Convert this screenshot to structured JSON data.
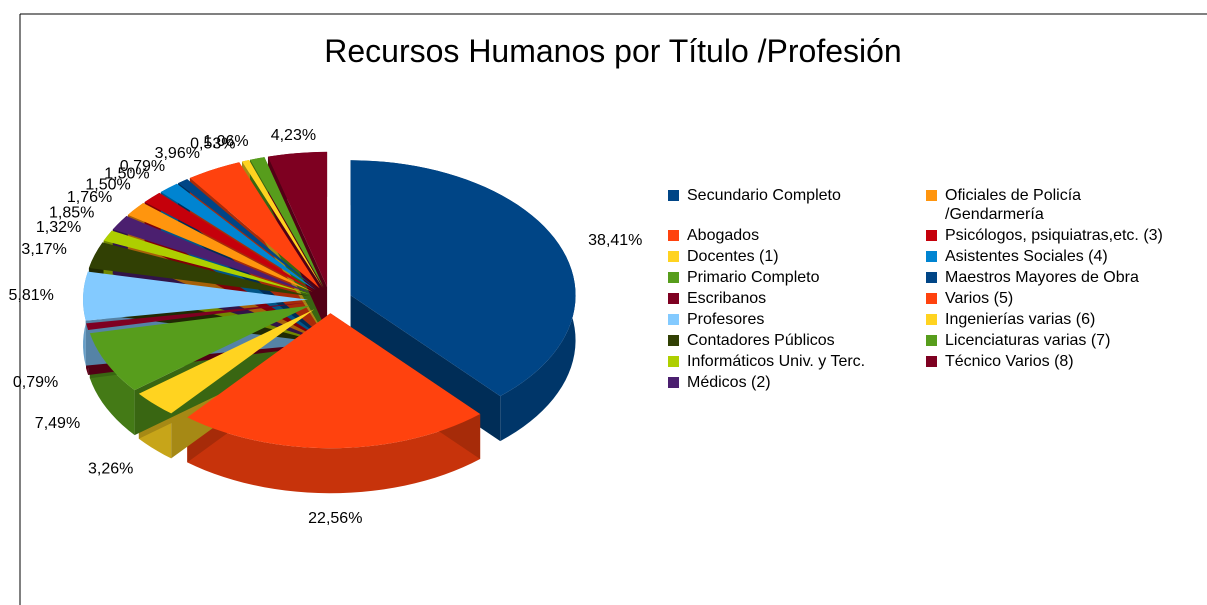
{
  "chart_data": {
    "type": "pie",
    "title": "Recursos Humanos por Título /Profesión",
    "categories": [
      "Secundario Completo",
      "Abogados",
      "Docentes (1)",
      "Primario Completo",
      "Escribanos",
      "Profesores",
      "Contadores Públicos",
      "Informáticos Univ. y Terc.",
      "Médicos  (2)",
      "Oficiales de Policía /Gendarmería",
      "Psicólogos, psiquiatras,etc. (3)",
      "Asistentes Sociales (4)",
      "Maestros Mayores de Obra",
      "Varios (5)",
      "Ingenierías varias (6)",
      "Licenciaturas varias (7)",
      "Técnico Varios (8)"
    ],
    "values": [
      38.41,
      22.56,
      3.26,
      7.49,
      0.79,
      5.81,
      3.17,
      1.32,
      1.85,
      1.76,
      1.5,
      1.5,
      0.79,
      3.96,
      0.53,
      1.06,
      4.23
    ],
    "value_labels": [
      "38,41%",
      "22,56%",
      "3,26%",
      "7,49%",
      "0,79%",
      "5,81%",
      "3,17%",
      "1,32%",
      "1,85%",
      "1,76%",
      "1,50%",
      "1,50%",
      "0,79%",
      "3,96%",
      "0,53%",
      "1,06%",
      "4,23%"
    ],
    "colors": [
      "#004586",
      "#ff420e",
      "#ffd320",
      "#579d1c",
      "#7e0021",
      "#83caff",
      "#314004",
      "#aecf00",
      "#4b1f6f",
      "#ff950e",
      "#c5000b",
      "#0084d1",
      "#004586",
      "#ff420e",
      "#ffd320",
      "#579d1c",
      "#7e0021"
    ],
    "legend": "right"
  }
}
